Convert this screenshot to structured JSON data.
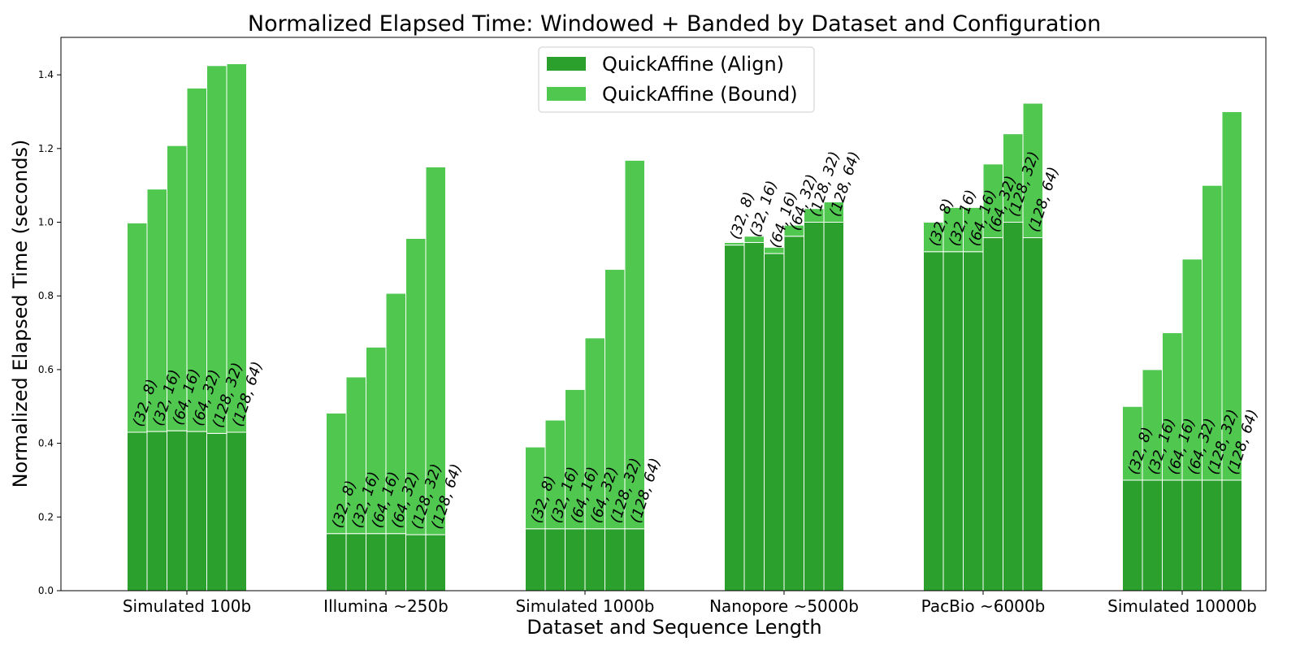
{
  "chart_data": {
    "type": "bar",
    "stacked": true,
    "title": "Normalized Elapsed Time: Windowed + Banded by Dataset and Configuration",
    "xlabel": "Dataset and Sequence Length",
    "ylabel": "Normalized Elapsed Time (seconds)",
    "ylim": [
      0,
      1.5
    ],
    "yticks": [
      "0.0",
      "0.2",
      "0.4",
      "0.6",
      "0.8",
      "1.0",
      "1.2",
      "1.4"
    ],
    "grid": false,
    "legend_position": "top-center",
    "categories": [
      "Simulated 100b",
      "Illumina ~250b",
      "Simulated 1000b",
      "Nanopore ~5000b",
      "PacBio ~6000b",
      "Simulated 10000b"
    ],
    "configurations": [
      "(32, 8)",
      "(32, 16)",
      "(64, 16)",
      "(64, 32)",
      "(128, 32)",
      "(128, 64)"
    ],
    "series": [
      {
        "name": "QuickAffine (Align)",
        "color": "#2ca02c",
        "values": [
          [
            0.43,
            0.432,
            0.434,
            0.432,
            0.427,
            0.43
          ],
          [
            0.155,
            0.155,
            0.155,
            0.155,
            0.152,
            0.152
          ],
          [
            0.168,
            0.168,
            0.168,
            0.168,
            0.168,
            0.168
          ],
          [
            0.938,
            0.945,
            0.915,
            0.962,
            1.0,
            1.0
          ],
          [
            0.92,
            0.92,
            0.92,
            0.958,
            1.0,
            0.958
          ],
          [
            0.3,
            0.3,
            0.3,
            0.3,
            0.3,
            0.3
          ]
        ]
      },
      {
        "name": "QuickAffine (Bound)",
        "color": "#50c850",
        "values": [
          [
            0.568,
            0.658,
            0.774,
            0.932,
            0.998,
            1.0
          ],
          [
            0.327,
            0.425,
            0.506,
            0.652,
            0.804,
            0.998
          ],
          [
            0.222,
            0.295,
            0.378,
            0.518,
            0.704,
            1.0
          ],
          [
            0.007,
            0.017,
            0.017,
            0.03,
            0.037,
            0.055
          ],
          [
            0.08,
            0.12,
            0.12,
            0.2,
            0.24,
            0.365
          ],
          [
            0.2,
            0.3,
            0.4,
            0.6,
            0.8,
            1.0
          ]
        ]
      }
    ]
  }
}
